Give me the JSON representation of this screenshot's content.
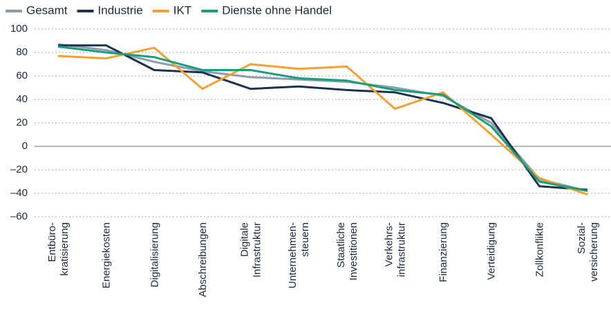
{
  "chart_data": {
    "type": "line",
    "categories": [
      "Entbüro-\nkratisierung",
      "Energiekosten",
      "Digitalisierung",
      "Abschreibungen",
      "Digitale\nInfrastruktur",
      "Unternehmen-\nsteuern",
      "Staatliche\nInvestitionen",
      "Verkehrs-\ninfrastruktur",
      "Finanzierung",
      "Verteidigung",
      "Zollkonflikte",
      "Sozial-\nversicherung"
    ],
    "series": [
      {
        "name": "Gesamt",
        "color": "#8d9db0",
        "values": [
          87,
          82,
          72,
          64,
          59,
          57,
          55,
          50,
          43,
          20,
          -28,
          -38
        ]
      },
      {
        "name": "Industrie",
        "color": "#1b3350",
        "values": [
          86,
          86,
          65,
          63,
          49,
          51,
          48,
          46,
          37,
          24,
          -34,
          -37
        ]
      },
      {
        "name": "IKT",
        "color": "#f5a030",
        "values": [
          77,
          75,
          84,
          49,
          70,
          66,
          68,
          32,
          46,
          10,
          -27,
          -41
        ]
      },
      {
        "name": "Dienste ohne Handel",
        "color": "#1a9e7a",
        "values": [
          85,
          80,
          76,
          65,
          65,
          58,
          56,
          48,
          44,
          17,
          -30,
          -38
        ]
      }
    ],
    "ylim": [
      -60,
      100
    ],
    "yticks": [
      {
        "value": -60,
        "label": "–60"
      },
      {
        "value": -40,
        "label": "–40"
      },
      {
        "value": -20,
        "label": "–20"
      },
      0,
      20,
      40,
      60,
      80,
      100
    ],
    "grid": true,
    "legend": "top"
  }
}
